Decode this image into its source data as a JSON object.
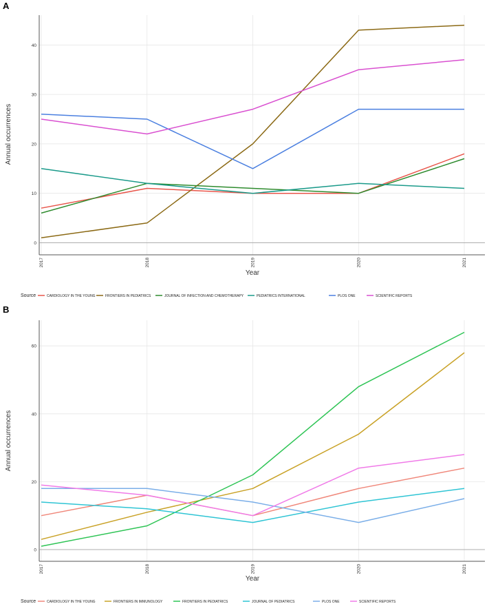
{
  "chart_data": [
    {
      "panel": "A",
      "type": "line",
      "xlabel": "Year",
      "ylabel": "Annual occurrences",
      "x": [
        "2017",
        "2018",
        "2019",
        "2020",
        "2021"
      ],
      "yticks": [
        0,
        10,
        20,
        30,
        40
      ],
      "ylim": [
        -2,
        46
      ],
      "legend_title": "Source",
      "legend_position": "bottom",
      "grid": true,
      "series": [
        {
          "name": "CARDIOLOGY IN THE YOUNG",
          "color": "#e8554a",
          "values": [
            7,
            11,
            10,
            10,
            18
          ]
        },
        {
          "name": "FRONTIERS IN PEDIATRICS",
          "color": "#8b6914",
          "values": [
            1,
            4,
            20,
            43,
            44
          ]
        },
        {
          "name": "JOURNAL OF INFECTION AND CHEMOTHERAPY",
          "color": "#2e8b2e",
          "values": [
            6,
            12,
            11,
            10,
            17
          ]
        },
        {
          "name": "PEDIATRICS INTERNATIONAL",
          "color": "#1a9a8a",
          "values": [
            15,
            12,
            10,
            12,
            11
          ]
        },
        {
          "name": "PLOS ONE",
          "color": "#4a7fe0",
          "values": [
            26,
            25,
            15,
            27,
            27
          ]
        },
        {
          "name": "SCIENTIFIC REPORTS",
          "color": "#d94fd0",
          "values": [
            25,
            22,
            27,
            35,
            37
          ]
        }
      ]
    },
    {
      "panel": "B",
      "type": "line",
      "xlabel": "Year",
      "ylabel": "Annual occurrences",
      "x": [
        "2017",
        "2018",
        "2019",
        "2020",
        "2021"
      ],
      "yticks": [
        0,
        20,
        40,
        60
      ],
      "ylim": [
        -3,
        67
      ],
      "legend_title": "Source",
      "legend_position": "bottom",
      "grid": true,
      "series": [
        {
          "name": "CARDIOLOGY IN THE YOUNG",
          "color": "#f0877a",
          "values": [
            10,
            16,
            10,
            18,
            24
          ]
        },
        {
          "name": "FRONTIERS IN IMMUNOLOGY",
          "color": "#c9a227",
          "values": [
            3,
            11,
            18,
            34,
            58
          ]
        },
        {
          "name": "FRONTIERS IN PEDIATRICS",
          "color": "#2ec455",
          "values": [
            1,
            7,
            22,
            48,
            64
          ]
        },
        {
          "name": "JOURNAL OF PEDIATRICS",
          "color": "#2ec4d4",
          "values": [
            14,
            12,
            8,
            14,
            18
          ]
        },
        {
          "name": "PLOS ONE",
          "color": "#7aaee8",
          "values": [
            18,
            18,
            14,
            8,
            15
          ]
        },
        {
          "name": "SCIENTIFIC REPORTS",
          "color": "#f07ae8",
          "values": [
            19,
            16,
            10,
            24,
            28
          ]
        }
      ]
    }
  ]
}
